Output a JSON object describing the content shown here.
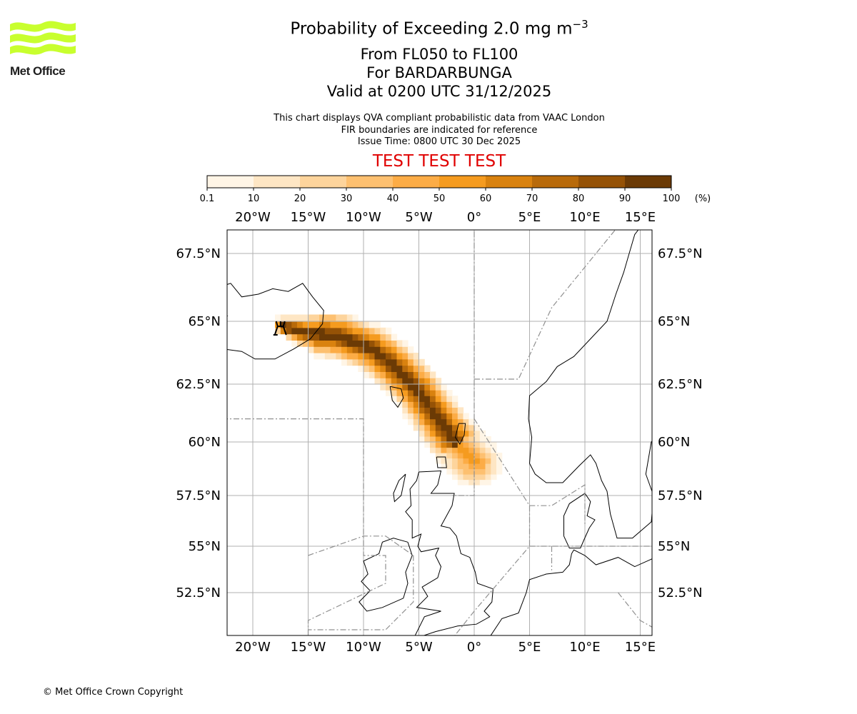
{
  "header": {
    "logo_text": "Met Office",
    "title_prefix": "Probability of Exceeding 2.0 mg m",
    "title_superscript": "−3",
    "levels": "From FL050 to FL100",
    "volcano": "For BARDARBUNGA",
    "valid": "Valid at 0200 UTC 31/12/2025"
  },
  "subtitle": {
    "line1": "This chart displays QVA compliant probabilistic data from VAAC London",
    "line2": "FIR boundaries are indicated for reference",
    "line3": "Issue Time: 0800 UTC 30 Dec 2025"
  },
  "watermark": "TEST TEST TEST",
  "colorbar": {
    "ticks": [
      "0.1",
      "10",
      "20",
      "30",
      "40",
      "50",
      "60",
      "70",
      "80",
      "90",
      "100"
    ],
    "unit": "(%)",
    "colors": [
      "#fff5e6",
      "#fee6c4",
      "#fdd49c",
      "#fdc070",
      "#fcac46",
      "#f59b1f",
      "#d9820f",
      "#b86a0a",
      "#955206",
      "#6b3a05"
    ]
  },
  "map": {
    "lon_labels": [
      "20°W",
      "15°W",
      "10°W",
      "5°W",
      "0°",
      "5°E",
      "10°E",
      "15°E"
    ],
    "lat_labels": [
      "67.5°N",
      "65°N",
      "62.5°N",
      "60°N",
      "57.5°N",
      "55°N",
      "52.5°N"
    ],
    "gridlines": true,
    "volcano_marker": "volcano-icon"
  },
  "footer": {
    "copyright": "© Met Office Crown Copyright"
  }
}
